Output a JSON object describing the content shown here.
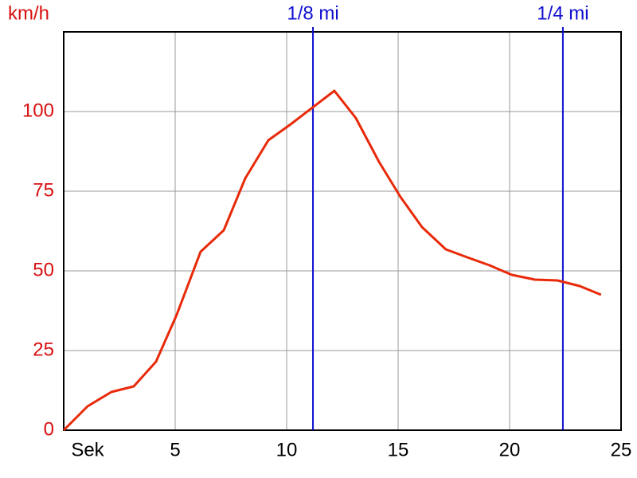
{
  "chart_data": {
    "type": "line",
    "y_label": "km/h",
    "x": [
      0,
      1.07,
      2.14,
      3.14,
      4.14,
      5.07,
      6.14,
      7.18,
      8.14,
      9.18,
      10.18,
      12.14,
      13.1,
      14.14,
      15.1,
      16.07,
      17.14,
      18.1,
      19.1,
      20.1,
      21.14,
      22.14,
      23.14,
      24.1
    ],
    "series": [
      {
        "color": "#e82a0a",
        "values": [
          0,
          7.5,
          12,
          13.75,
          21.5,
          36.25,
          56,
          62.75,
          79,
          91,
          96,
          106.5,
          98,
          84.25,
          73.25,
          63.75,
          56.75,
          54.25,
          51.75,
          48.75,
          47.25,
          47,
          45.25,
          42.5
        ]
      }
    ],
    "xlim": [
      0,
      25
    ],
    "xticks": [
      {
        "value": 0,
        "label": "Sek"
      },
      5,
      10,
      15,
      20,
      25
    ],
    "ylim": [
      0,
      125
    ],
    "yticks": [
      0,
      25,
      50,
      75,
      100
    ],
    "grid": true,
    "markers": [
      {
        "label": "1/8 mi",
        "x": 11.18,
        "color": "#1010d0"
      },
      {
        "label": "1/4 mi",
        "x": 22.39,
        "color": "#1010d0"
      }
    ],
    "y_color": "#d81010"
  }
}
